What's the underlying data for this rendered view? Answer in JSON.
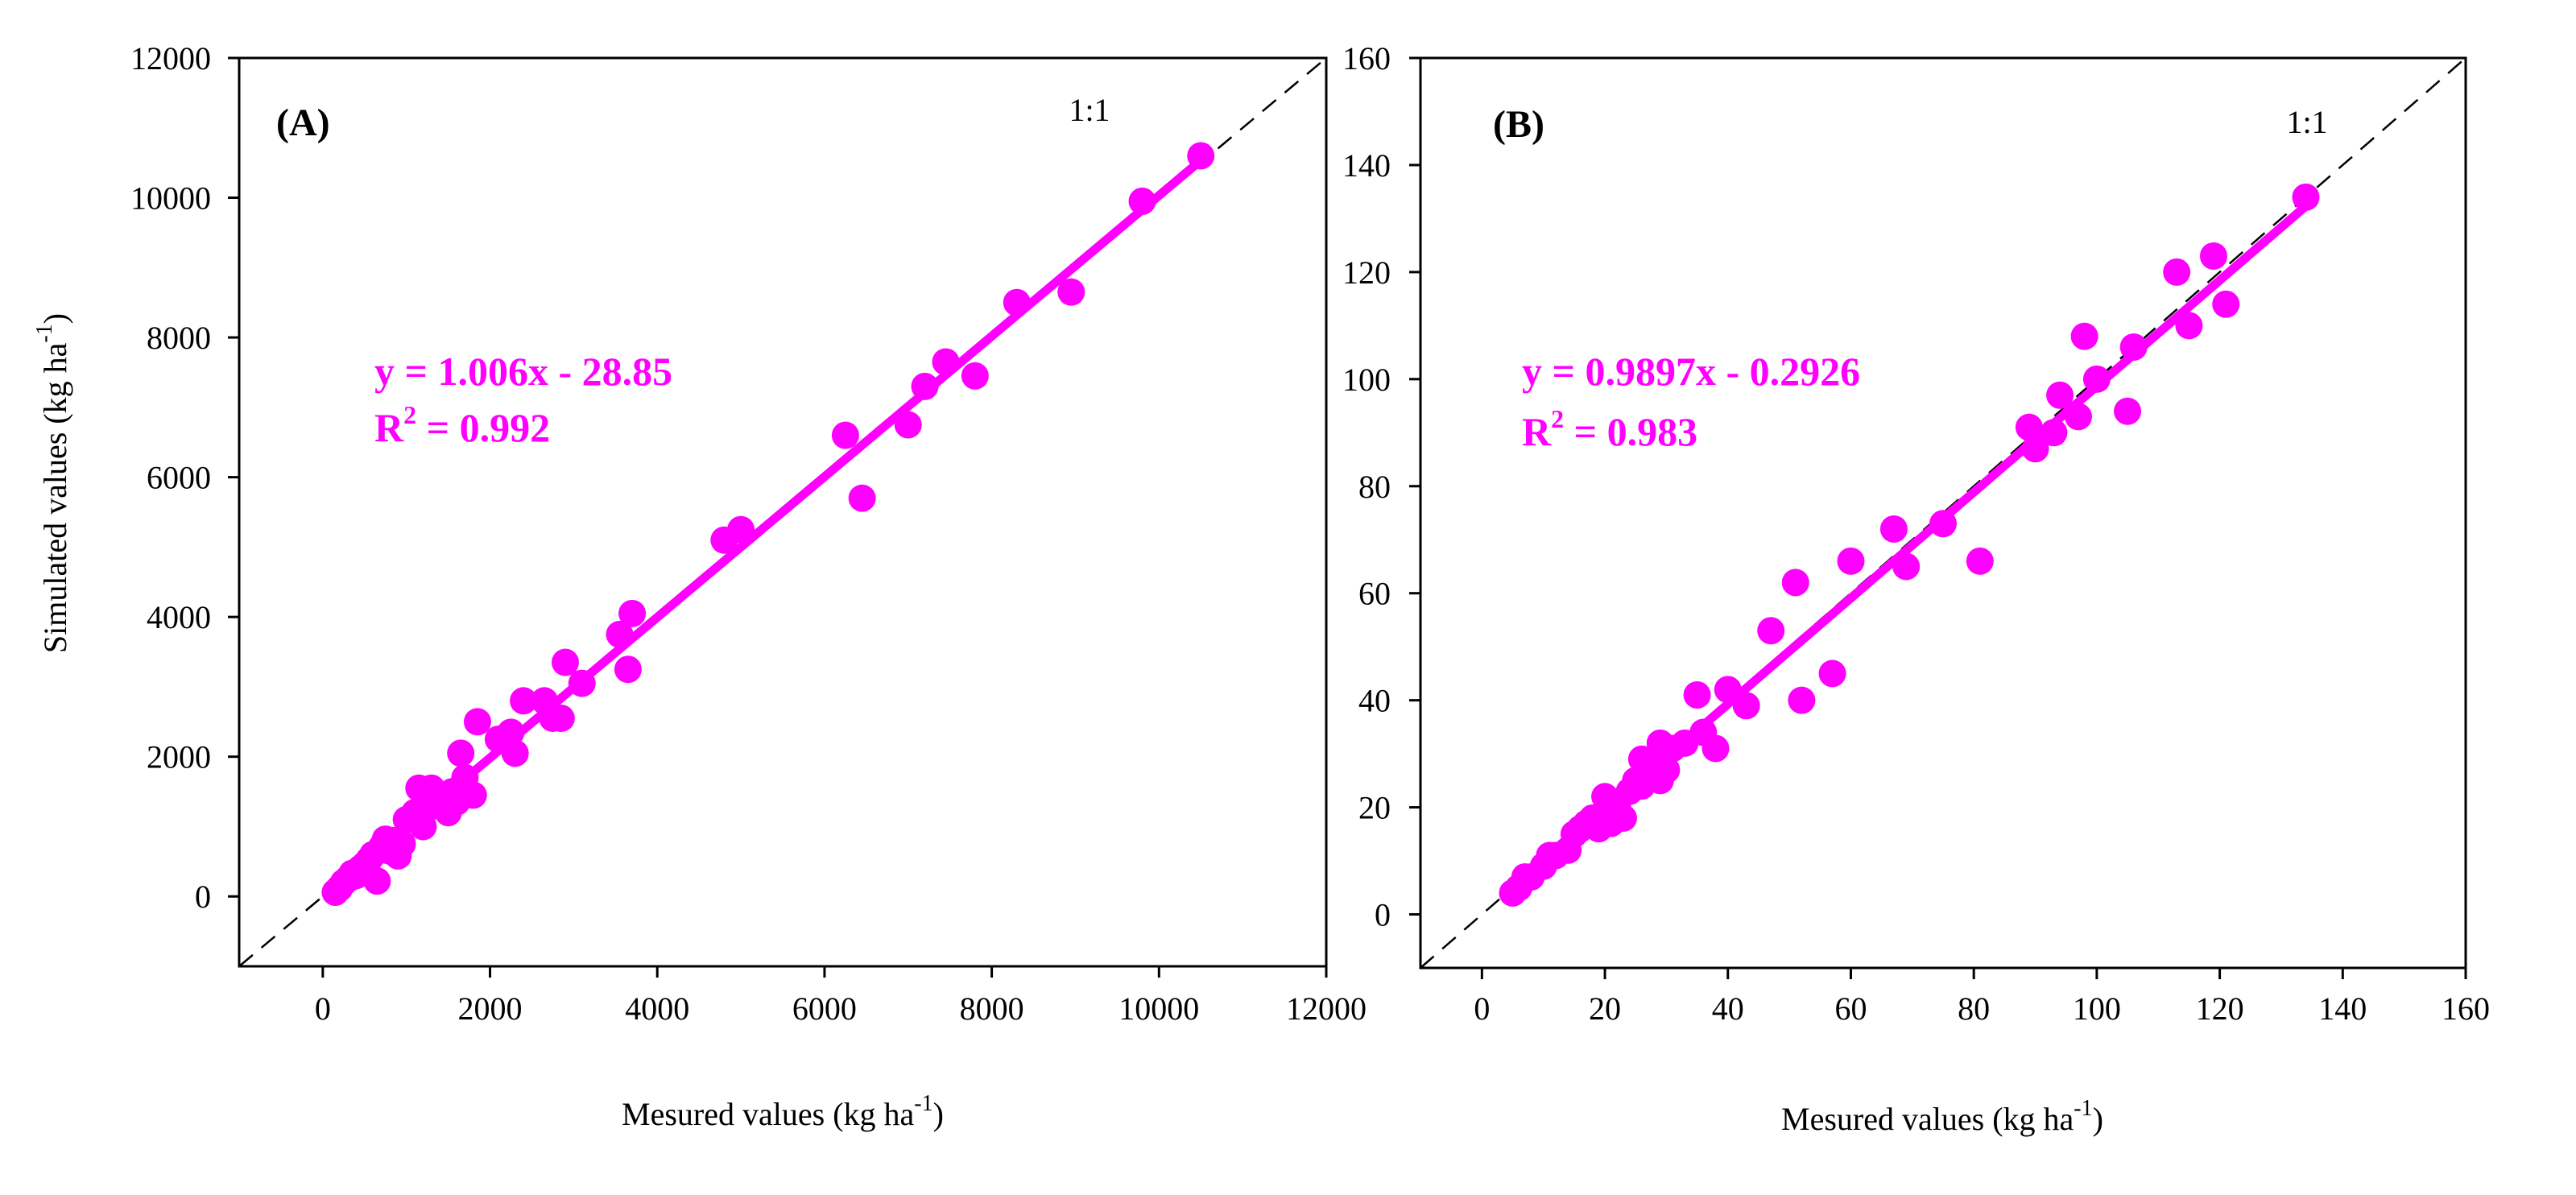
{
  "chart_data": [
    {
      "type": "scatter",
      "panel_label": "(A)",
      "xlabel": "Mesured values (kg ha",
      "xlabel_superscript": "-1",
      "xlabel_suffix": ")",
      "ylabel": "Simulated values (kg ha",
      "ylabel_superscript": "-1",
      "ylabel_suffix": ")",
      "xlim": [
        -1000,
        12000
      ],
      "ylim": [
        -1000,
        12000
      ],
      "xticks": [
        0,
        2000,
        4000,
        6000,
        8000,
        10000,
        12000
      ],
      "yticks": [
        0,
        2000,
        4000,
        6000,
        8000,
        10000,
        12000
      ],
      "one_to_one_label": "1:1",
      "fit": {
        "slope": 1.006,
        "intercept": -28.85,
        "x_range": [
          100,
          10500
        ]
      },
      "equation_line1": "y = 1.006x - 28.85",
      "equation_r2_prefix": "R",
      "equation_r2_superscript": "2",
      "equation_r2_suffix": " = 0.992",
      "marker_color": "#ff00ff",
      "points": [
        [
          150,
          60
        ],
        [
          200,
          120
        ],
        [
          250,
          200
        ],
        [
          300,
          250
        ],
        [
          350,
          330
        ],
        [
          400,
          300
        ],
        [
          450,
          400
        ],
        [
          500,
          450
        ],
        [
          550,
          520
        ],
        [
          600,
          600
        ],
        [
          650,
          220
        ],
        [
          700,
          700
        ],
        [
          750,
          820
        ],
        [
          800,
          650
        ],
        [
          850,
          800
        ],
        [
          900,
          580
        ],
        [
          950,
          750
        ],
        [
          1000,
          1100
        ],
        [
          1100,
          1200
        ],
        [
          1150,
          1550
        ],
        [
          1200,
          1000
        ],
        [
          1300,
          1550
        ],
        [
          1350,
          1300
        ],
        [
          1400,
          1400
        ],
        [
          1500,
          1200
        ],
        [
          1550,
          1500
        ],
        [
          1600,
          1350
        ],
        [
          1650,
          2050
        ],
        [
          1700,
          1700
        ],
        [
          1800,
          1450
        ],
        [
          1850,
          2500
        ],
        [
          2100,
          2250
        ],
        [
          2250,
          2350
        ],
        [
          2300,
          2050
        ],
        [
          2400,
          2800
        ],
        [
          2650,
          2800
        ],
        [
          2750,
          2550
        ],
        [
          2850,
          2550
        ],
        [
          2900,
          3350
        ],
        [
          3100,
          3050
        ],
        [
          3550,
          3750
        ],
        [
          3650,
          3250
        ],
        [
          3700,
          4050
        ],
        [
          4800,
          5100
        ],
        [
          5000,
          5250
        ],
        [
          6250,
          6600
        ],
        [
          6450,
          5700
        ],
        [
          7000,
          6750
        ],
        [
          7200,
          7300
        ],
        [
          7450,
          7650
        ],
        [
          7800,
          7450
        ],
        [
          8300,
          8500
        ],
        [
          8950,
          8650
        ],
        [
          9800,
          9950
        ],
        [
          10500,
          10600
        ]
      ]
    },
    {
      "type": "scatter",
      "panel_label": "(B)",
      "xlabel": "Mesured values (kg ha",
      "xlabel_superscript": "-1",
      "xlabel_suffix": ")",
      "xlim": [
        -10,
        160
      ],
      "ylim": [
        -10,
        160
      ],
      "xticks": [
        0,
        20,
        40,
        60,
        80,
        100,
        120,
        140,
        160
      ],
      "yticks": [
        0,
        20,
        40,
        60,
        80,
        100,
        120,
        140,
        160
      ],
      "one_to_one_label": "1:1",
      "fit": {
        "slope": 0.9897,
        "intercept": -0.2926,
        "x_range": [
          5,
          134
        ]
      },
      "equation_line1": "y = 0.9897x - 0.2926",
      "equation_r2_prefix": "R",
      "equation_r2_superscript": "2",
      "equation_r2_suffix": " = 0.983",
      "marker_color": "#ff00ff",
      "points": [
        [
          5,
          4
        ],
        [
          6,
          5
        ],
        [
          7,
          7
        ],
        [
          8,
          7
        ],
        [
          10,
          9
        ],
        [
          11,
          11
        ],
        [
          12,
          11
        ],
        [
          14,
          12
        ],
        [
          15,
          15
        ],
        [
          16,
          16
        ],
        [
          17,
          17
        ],
        [
          18,
          18
        ],
        [
          19,
          16
        ],
        [
          20,
          22
        ],
        [
          21,
          17
        ],
        [
          22,
          20
        ],
        [
          23,
          18
        ],
        [
          24,
          23
        ],
        [
          25,
          25
        ],
        [
          26,
          24
        ],
        [
          26,
          29
        ],
        [
          27,
          26
        ],
        [
          28,
          28
        ],
        [
          29,
          25
        ],
        [
          29,
          32
        ],
        [
          30,
          27
        ],
        [
          31,
          31
        ],
        [
          33,
          32
        ],
        [
          35,
          41
        ],
        [
          36,
          34
        ],
        [
          38,
          31
        ],
        [
          40,
          42
        ],
        [
          43,
          39
        ],
        [
          47,
          53
        ],
        [
          51,
          62
        ],
        [
          52,
          40
        ],
        [
          57,
          45
        ],
        [
          60,
          66
        ],
        [
          67,
          72
        ],
        [
          69,
          65
        ],
        [
          75,
          73
        ],
        [
          81,
          66
        ],
        [
          89,
          91
        ],
        [
          90,
          87
        ],
        [
          93,
          90
        ],
        [
          94,
          97
        ],
        [
          97,
          93
        ],
        [
          98,
          108
        ],
        [
          100,
          100
        ],
        [
          105,
          94
        ],
        [
          106,
          106
        ],
        [
          113,
          120
        ],
        [
          115,
          110
        ],
        [
          119,
          123
        ],
        [
          121,
          114
        ],
        [
          134,
          134
        ]
      ]
    }
  ]
}
